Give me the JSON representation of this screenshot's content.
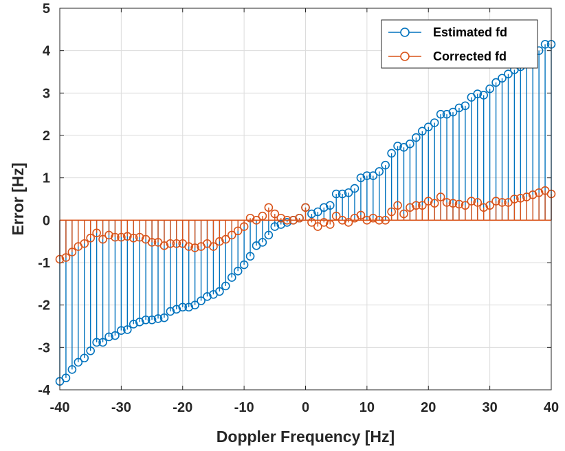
{
  "chart_data": {
    "type": "stem",
    "xlabel": "Doppler Frequency [Hz]",
    "ylabel": "Error [Hz]",
    "xlim": [
      -40,
      40
    ],
    "ylim": [
      -4,
      5
    ],
    "xticks": [
      -40,
      -30,
      -20,
      -10,
      0,
      10,
      20,
      30,
      40
    ],
    "yticks": [
      -4,
      -3,
      -2,
      -1,
      0,
      1,
      2,
      3,
      4,
      5
    ],
    "grid": true,
    "legend_position": "top-right",
    "x": [
      -40,
      -39,
      -38,
      -37,
      -36,
      -35,
      -34,
      -33,
      -32,
      -31,
      -30,
      -29,
      -28,
      -27,
      -26,
      -25,
      -24,
      -23,
      -22,
      -21,
      -20,
      -19,
      -18,
      -17,
      -16,
      -15,
      -14,
      -13,
      -12,
      -11,
      -10,
      -9,
      -8,
      -7,
      -6,
      -5,
      -4,
      -3,
      -2,
      -1,
      0,
      1,
      2,
      3,
      4,
      5,
      6,
      7,
      8,
      9,
      10,
      11,
      12,
      13,
      14,
      15,
      16,
      17,
      18,
      19,
      20,
      21,
      22,
      23,
      24,
      25,
      26,
      27,
      28,
      29,
      30,
      31,
      32,
      33,
      34,
      35,
      36,
      37,
      38,
      39,
      40
    ],
    "series": [
      {
        "name": "Estimated fd",
        "color": "#0072BD",
        "values": [
          -3.8,
          -3.72,
          -3.52,
          -3.35,
          -3.25,
          -3.08,
          -2.88,
          -2.88,
          -2.75,
          -2.72,
          -2.6,
          -2.58,
          -2.45,
          -2.4,
          -2.35,
          -2.35,
          -2.32,
          -2.3,
          -2.15,
          -2.1,
          -2.05,
          -2.05,
          -2.0,
          -1.9,
          -1.8,
          -1.75,
          -1.68,
          -1.55,
          -1.35,
          -1.2,
          -1.05,
          -0.85,
          -0.6,
          -0.52,
          -0.35,
          -0.15,
          -0.1,
          -0.05,
          0.0,
          0.05,
          0.3,
          0.15,
          0.2,
          0.3,
          0.35,
          0.62,
          0.62,
          0.65,
          0.75,
          1.0,
          1.05,
          1.05,
          1.15,
          1.3,
          1.58,
          1.75,
          1.72,
          1.8,
          1.95,
          2.1,
          2.2,
          2.3,
          2.5,
          2.5,
          2.55,
          2.65,
          2.7,
          2.9,
          2.98,
          2.95,
          3.1,
          3.25,
          3.35,
          3.45,
          3.55,
          3.62,
          3.7,
          3.8,
          4.0,
          4.15,
          4.15
        ]
      },
      {
        "name": "Corrected fd",
        "color": "#D95319",
        "values": [
          -0.92,
          -0.88,
          -0.75,
          -0.62,
          -0.55,
          -0.42,
          -0.3,
          -0.45,
          -0.35,
          -0.4,
          -0.4,
          -0.38,
          -0.42,
          -0.4,
          -0.45,
          -0.52,
          -0.52,
          -0.6,
          -0.55,
          -0.55,
          -0.55,
          -0.62,
          -0.65,
          -0.62,
          -0.55,
          -0.62,
          -0.5,
          -0.45,
          -0.35,
          -0.25,
          -0.15,
          0.05,
          0.0,
          0.1,
          0.3,
          0.15,
          0.05,
          0.0,
          0.0,
          0.05,
          0.3,
          -0.05,
          -0.15,
          -0.05,
          -0.1,
          0.1,
          0.0,
          -0.05,
          0.05,
          0.12,
          0.0,
          0.05,
          0.0,
          0.0,
          0.2,
          0.35,
          0.15,
          0.3,
          0.35,
          0.35,
          0.45,
          0.4,
          0.55,
          0.42,
          0.4,
          0.38,
          0.35,
          0.45,
          0.42,
          0.3,
          0.35,
          0.45,
          0.42,
          0.42,
          0.5,
          0.52,
          0.55,
          0.6,
          0.65,
          0.7,
          0.62
        ]
      }
    ]
  }
}
